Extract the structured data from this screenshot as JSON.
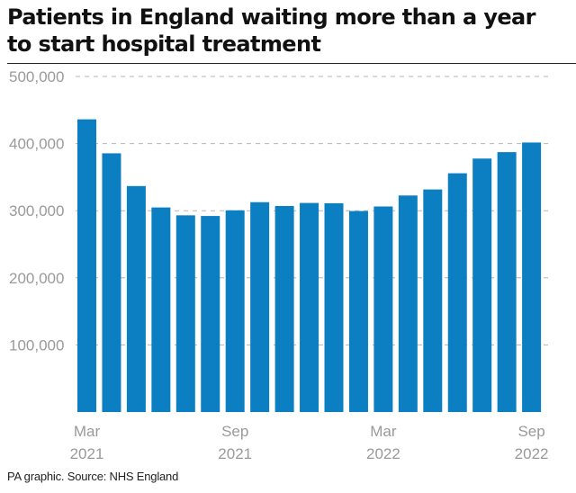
{
  "title": "Patients in England waiting more than a year to start hospital treatment",
  "source": "PA graphic. Source: NHS England",
  "colors": {
    "bar": "#0b7fc1",
    "grid": "#b5b5b5",
    "tick_text": "#9a9a9a",
    "rule": "#222222"
  },
  "chart_data": {
    "type": "bar",
    "title": "Patients in England waiting more than a year to start hospital treatment",
    "xlabel": "",
    "ylabel": "",
    "categories": [
      "Mar 2021",
      "Apr 2021",
      "May 2021",
      "Jun 2021",
      "Jul 2021",
      "Aug 2021",
      "Sep 2021",
      "Oct 2021",
      "Nov 2021",
      "Dec 2021",
      "Jan 2022",
      "Feb 2022",
      "Mar 2022",
      "Apr 2022",
      "May 2022",
      "Jun 2022",
      "Jul 2022",
      "Aug 2022",
      "Sep 2022"
    ],
    "values": [
      436127,
      385490,
      336733,
      304803,
      293102,
      292138,
      300566,
      312665,
      306996,
      311528,
      311109,
      299478,
      306279,
      322664,
      331623,
      355774,
      377689,
      387257,
      401564
    ],
    "ylim": [
      0,
      500000
    ],
    "yticks": [
      {
        "value": 100000,
        "label": "100,000"
      },
      {
        "value": 200000,
        "label": "200,000"
      },
      {
        "value": 300000,
        "label": "300,000"
      },
      {
        "value": 400000,
        "label": "400,000"
      },
      {
        "value": 500000,
        "label": "500,000"
      }
    ],
    "xticks": [
      {
        "index": 0,
        "month": "Mar",
        "year": "2021"
      },
      {
        "index": 6,
        "month": "Sep",
        "year": "2021"
      },
      {
        "index": 12,
        "month": "Mar",
        "year": "2022"
      },
      {
        "index": 18,
        "month": "Sep",
        "year": "2022"
      }
    ],
    "grid": "horizontal dashed",
    "legend": "none"
  }
}
